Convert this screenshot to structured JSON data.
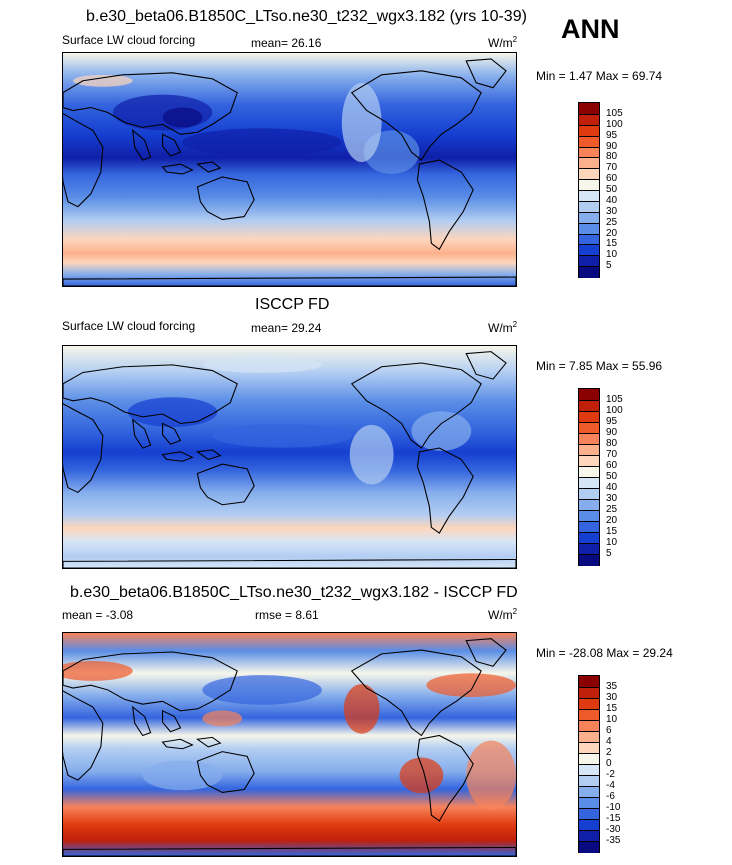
{
  "header": {
    "title": "b.e30_beta06.B1850C_LTso.ne30_t232_wgx3.182 (yrs 10-39)",
    "season": "ANN"
  },
  "panels": [
    {
      "id": "model",
      "left_label": "Surface LW cloud forcing",
      "stat_label": "mean=  26.16",
      "units_base": "W/m",
      "units_exp": "2",
      "minmax": "Min =   1.47 Max =  69.74",
      "colorbar": {
        "ticks": [
          "105",
          "100",
          "95",
          "90",
          "80",
          "70",
          "60",
          "50",
          "40",
          "30",
          "25",
          "20",
          "15",
          "10",
          "5"
        ],
        "colors": [
          "#8b0000",
          "#c0200a",
          "#e03a10",
          "#ef5a2a",
          "#f7835a",
          "#fcb08c",
          "#fdd6bc",
          "#f6f6ea",
          "#d7e6f7",
          "#b2cdf2",
          "#86aeec",
          "#5a8ee6",
          "#3465de",
          "#153fd0",
          "#0f1fa8",
          "#0a0a80"
        ]
      },
      "map": {
        "style": "model"
      }
    },
    {
      "id": "obs",
      "title": "ISCCP FD",
      "left_label": "Surface LW cloud forcing",
      "stat_label": "mean=  29.24",
      "units_base": "W/m",
      "units_exp": "2",
      "minmax": "Min =   7.85 Max =  55.96",
      "colorbar": {
        "ticks": [
          "105",
          "100",
          "95",
          "90",
          "80",
          "70",
          "60",
          "50",
          "40",
          "30",
          "25",
          "20",
          "15",
          "10",
          "5"
        ],
        "colors": [
          "#8b0000",
          "#c0200a",
          "#e03a10",
          "#ef5a2a",
          "#f7835a",
          "#fcb08c",
          "#fdd6bc",
          "#f6f6ea",
          "#d7e6f7",
          "#b2cdf2",
          "#86aeec",
          "#5a8ee6",
          "#3465de",
          "#153fd0",
          "#0f1fa8",
          "#0a0a80"
        ]
      },
      "map": {
        "style": "obs"
      }
    },
    {
      "id": "diff",
      "title": "b.e30_beta06.B1850C_LTso.ne30_t232_wgx3.182 - ISCCP FD",
      "left_label": "mean =  -3.08",
      "stat_label": "rmse =   8.61",
      "units_base": "W/m",
      "units_exp": "2",
      "minmax": "Min = -28.08 Max =  29.24",
      "colorbar": {
        "ticks": [
          "35",
          "30",
          "15",
          "10",
          "6",
          "4",
          "2",
          "0",
          "-2",
          "-4",
          "-6",
          "-10",
          "-15",
          "-30",
          "-35"
        ],
        "colors": [
          "#8b0000",
          "#c0200a",
          "#e03a10",
          "#ef5a2a",
          "#f7835a",
          "#fcb08c",
          "#fdd6bc",
          "#f6f6ea",
          "#d7e6f7",
          "#b2cdf2",
          "#86aeec",
          "#5a8ee6",
          "#3465de",
          "#153fd0",
          "#0f1fa8",
          "#0a0a80"
        ]
      },
      "map": {
        "style": "diff"
      }
    }
  ]
}
